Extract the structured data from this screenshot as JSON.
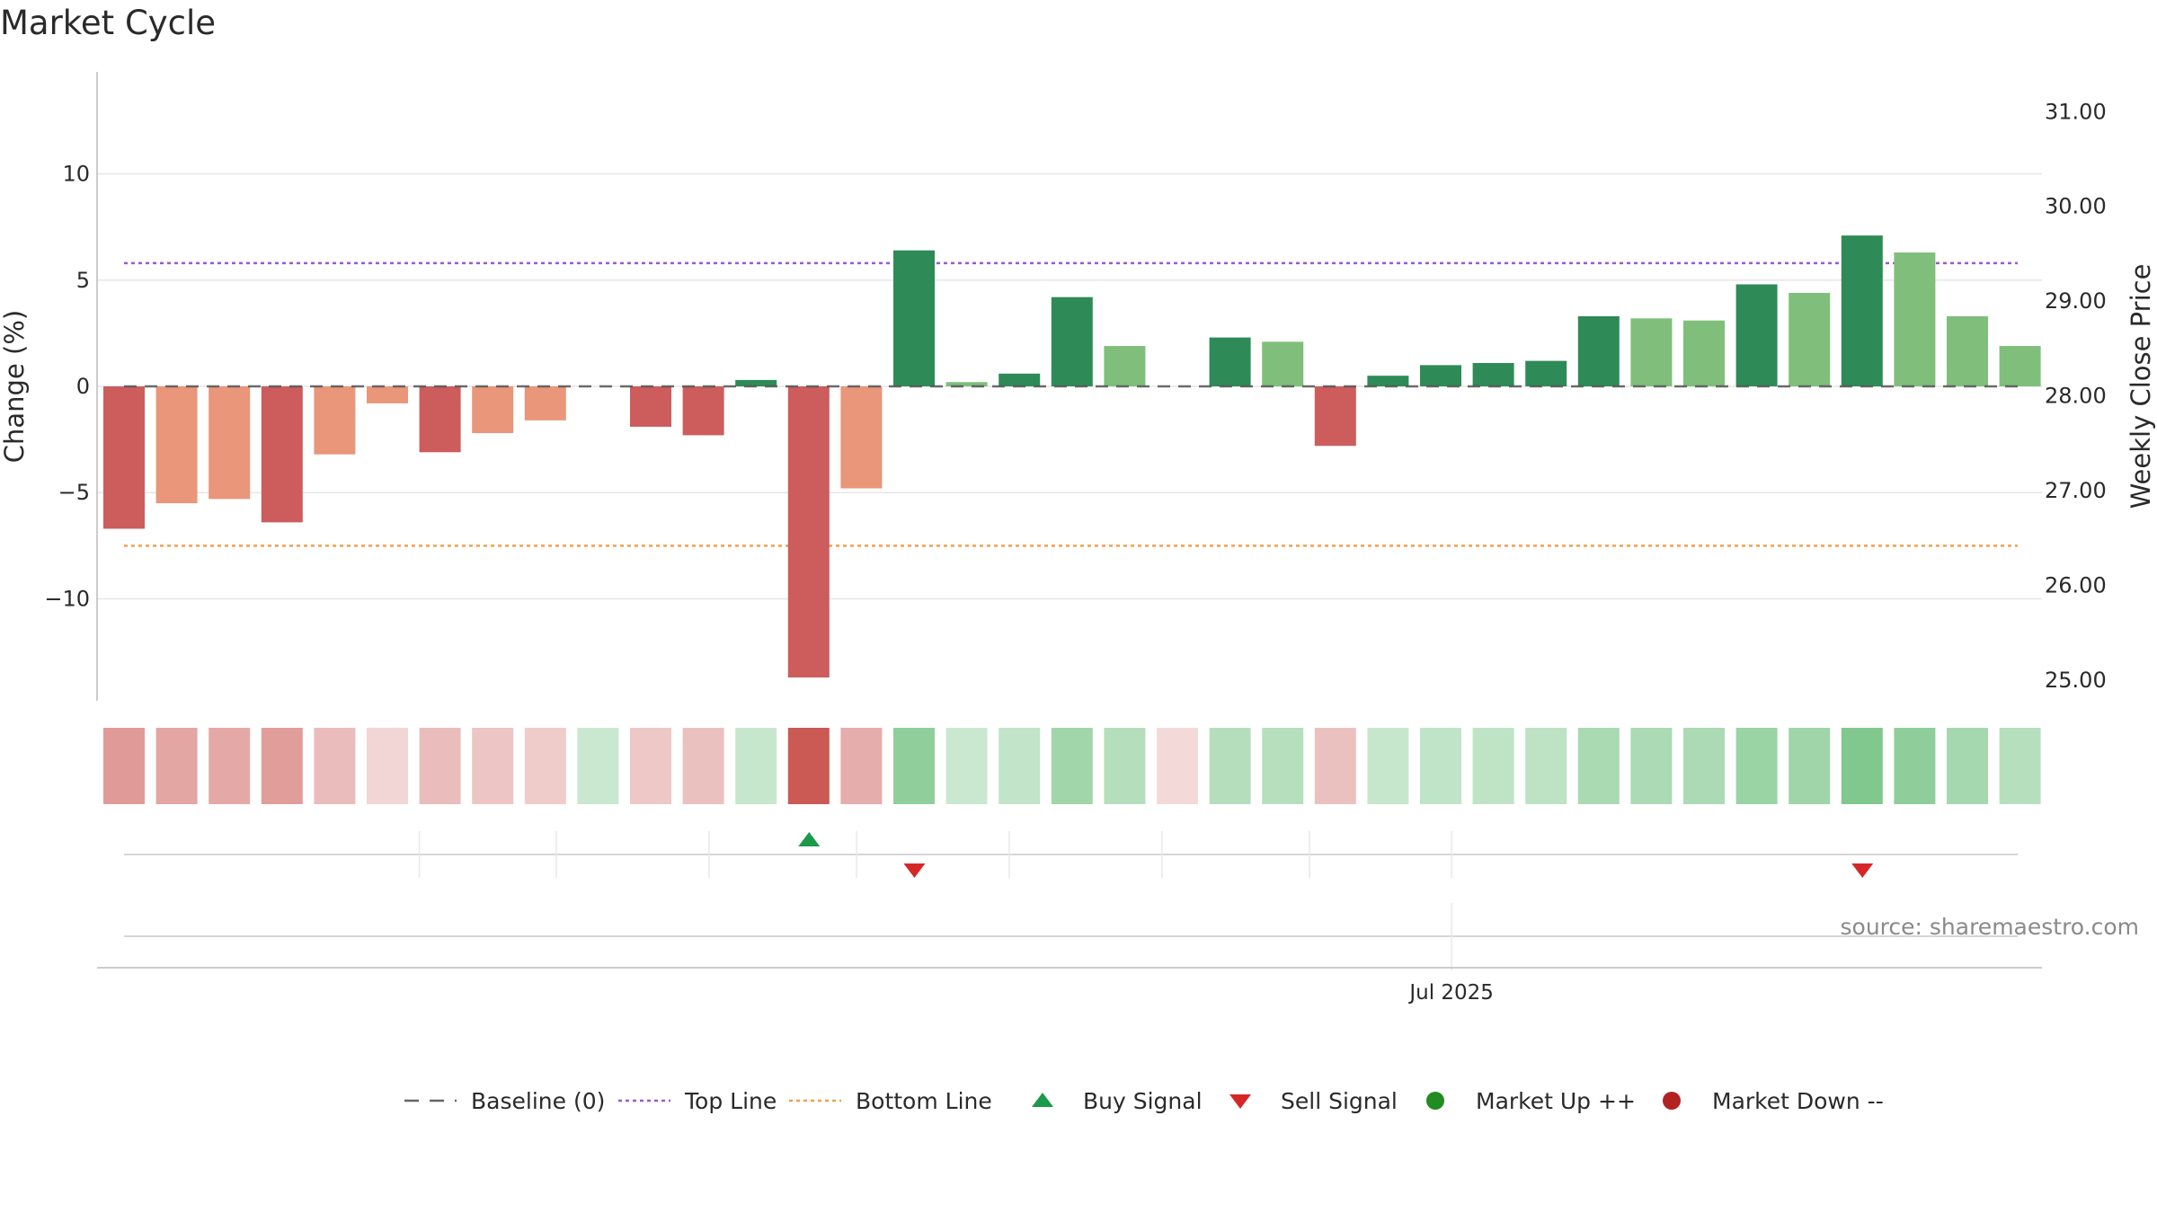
{
  "title": "Market Cycle",
  "source": "source: sharemaestro.com",
  "colors": {
    "strong_down": "#cd5c5c",
    "weak_down": "#e9967a",
    "strong_up": "#2e8b57",
    "weak_up": "#7fbf7b",
    "top_line": "#9b59d0",
    "bottom_line": "#f0a050",
    "baseline": "#555555",
    "buy": "#1a9a4a",
    "sell": "#d62728",
    "market_up": "#228b22",
    "market_down": "#b22222"
  },
  "chart_data": {
    "type": "bar",
    "title": "Market Cycle",
    "ylabel": "Change (%)",
    "y2label": "Weekly Close Price",
    "ylim": [
      -14.8,
      14.8
    ],
    "y2lim": [
      24.78,
      31.42
    ],
    "yticks": [
      10,
      5,
      0,
      -5,
      -10
    ],
    "ytick_labels": [
      "10",
      "5",
      "0",
      "−5",
      "−10"
    ],
    "y2ticks": [
      31.0,
      30.0,
      29.0,
      28.0,
      27.0,
      26.0,
      25.0
    ],
    "y2tick_labels": [
      "31.00",
      "30.00",
      "29.00",
      "28.00",
      "27.00",
      "26.00",
      "25.00"
    ],
    "x_tick_label": "Jul 2025",
    "x_tick_bar": 25.6,
    "top_line": 5.8,
    "bottom_line": -7.5,
    "values": [
      -6.7,
      -5.5,
      -5.3,
      -6.4,
      -3.2,
      -0.8,
      -3.1,
      -2.2,
      -1.6,
      0,
      -1.9,
      -2.3,
      0.3,
      -13.7,
      -4.8,
      6.4,
      0.2,
      0.6,
      4.2,
      1.9,
      0,
      2.3,
      2.1,
      -2.8,
      0.5,
      1.0,
      1.1,
      1.2,
      3.3,
      3.2,
      3.1,
      4.8,
      4.4,
      7.1,
      6.3,
      3.3,
      1.9
    ],
    "bar_shades": [
      "strong_down",
      "weak_down",
      "weak_down",
      "strong_down",
      "weak_down",
      "weak_down",
      "strong_down",
      "weak_down",
      "weak_down",
      "weak_down",
      "strong_down",
      "strong_down",
      "strong_up",
      "strong_down",
      "weak_down",
      "strong_up",
      "weak_up",
      "strong_up",
      "strong_up",
      "weak_up",
      "weak_up",
      "strong_up",
      "weak_up",
      "strong_down",
      "strong_up",
      "strong_up",
      "strong_up",
      "strong_up",
      "strong_up",
      "weak_up",
      "weak_up",
      "strong_up",
      "weak_up",
      "strong_up",
      "weak_up",
      "weak_up",
      "weak_up"
    ],
    "heat_strips": [
      {
        "sign": -1,
        "intensity": 0.55
      },
      {
        "sign": -1,
        "intensity": 0.48
      },
      {
        "sign": -1,
        "intensity": 0.46
      },
      {
        "sign": -1,
        "intensity": 0.54
      },
      {
        "sign": -1,
        "intensity": 0.33
      },
      {
        "sign": -1,
        "intensity": 0.16
      },
      {
        "sign": -1,
        "intensity": 0.33
      },
      {
        "sign": -1,
        "intensity": 0.27
      },
      {
        "sign": -1,
        "intensity": 0.23
      },
      {
        "sign": 1,
        "intensity": 0.2
      },
      {
        "sign": -1,
        "intensity": 0.25
      },
      {
        "sign": -1,
        "intensity": 0.3
      },
      {
        "sign": 1,
        "intensity": 0.22
      },
      {
        "sign": -1,
        "intensity": 1.0
      },
      {
        "sign": -1,
        "intensity": 0.43
      },
      {
        "sign": 1,
        "intensity": 0.55
      },
      {
        "sign": 1,
        "intensity": 0.2
      },
      {
        "sign": 1,
        "intensity": 0.25
      },
      {
        "sign": 1,
        "intensity": 0.45
      },
      {
        "sign": 1,
        "intensity": 0.33
      },
      {
        "sign": -1,
        "intensity": 0.13
      },
      {
        "sign": 1,
        "intensity": 0.33
      },
      {
        "sign": 1,
        "intensity": 0.32
      },
      {
        "sign": -1,
        "intensity": 0.3
      },
      {
        "sign": 1,
        "intensity": 0.22
      },
      {
        "sign": 1,
        "intensity": 0.26
      },
      {
        "sign": 1,
        "intensity": 0.27
      },
      {
        "sign": 1,
        "intensity": 0.28
      },
      {
        "sign": 1,
        "intensity": 0.4
      },
      {
        "sign": 1,
        "intensity": 0.39
      },
      {
        "sign": 1,
        "intensity": 0.39
      },
      {
        "sign": 1,
        "intensity": 0.49
      },
      {
        "sign": 1,
        "intensity": 0.46
      },
      {
        "sign": 1,
        "intensity": 0.65
      },
      {
        "sign": 1,
        "intensity": 0.56
      },
      {
        "sign": 1,
        "intensity": 0.42
      },
      {
        "sign": 1,
        "intensity": 0.32
      }
    ],
    "buy_signals": [
      13.4
    ],
    "sell_signals": [
      15.4,
      33.4
    ]
  },
  "legend": [
    {
      "key": "baseline",
      "label": "Baseline (0)",
      "marker": "dash",
      "color": "#666666"
    },
    {
      "key": "top",
      "label": "Top Line",
      "marker": "dot",
      "color": "#9b59d0"
    },
    {
      "key": "bottom",
      "label": "Bottom Line",
      "marker": "dot",
      "color": "#f0a050"
    },
    {
      "key": "buy",
      "label": "Buy Signal",
      "marker": "triangle-up",
      "color": "#1a9a4a"
    },
    {
      "key": "sell",
      "label": "Sell Signal",
      "marker": "triangle-down",
      "color": "#d62728"
    },
    {
      "key": "up",
      "label": "Market Up ++",
      "marker": "circle",
      "color": "#228b22"
    },
    {
      "key": "down",
      "label": "Market Down --",
      "marker": "circle",
      "color": "#b22222"
    }
  ]
}
